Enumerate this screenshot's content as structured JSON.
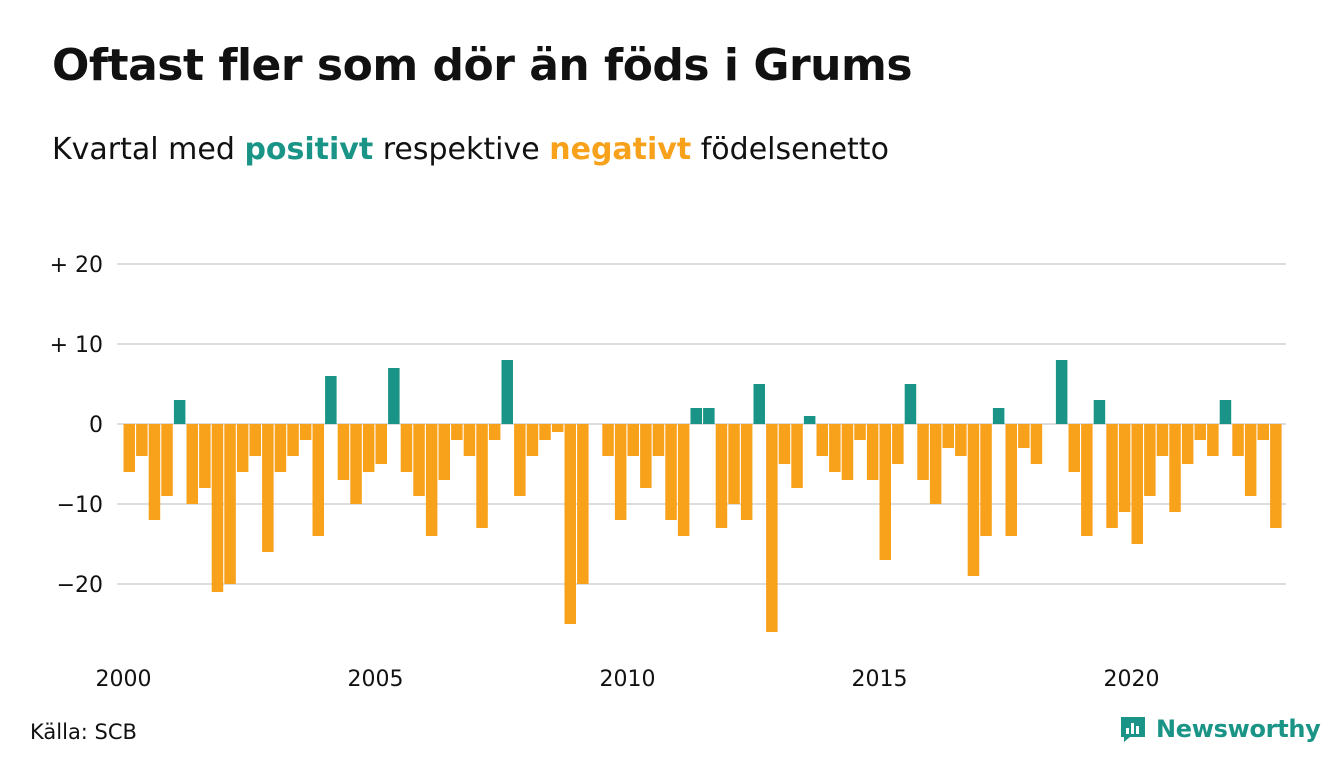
{
  "title": "Oftast fler som dör än föds i Grums",
  "subtitle": {
    "prefix": "Kvartal med",
    "positive_word": "positivt",
    "middle": "respektive",
    "negative_word": "negativt",
    "suffix": "födelsenetto"
  },
  "source": "Källa: SCB",
  "brand": {
    "name": "Newsworthy",
    "icon": "newsworthy-logo-icon"
  },
  "colors": {
    "positive": "#1a9486",
    "negative": "#f8a11b",
    "grid": "#dddddd",
    "text": "#111111",
    "brand": "#1a9486"
  },
  "chart_data": {
    "type": "bar",
    "start_year": 2000,
    "quarters_per_year": 4,
    "ylim": [
      -27,
      21
    ],
    "y_ticks": [
      {
        "value": 20,
        "label": "+ 20"
      },
      {
        "value": 10,
        "label": "+ 10"
      },
      {
        "value": 0,
        "label": "0"
      },
      {
        "value": -10,
        "label": "−10"
      },
      {
        "value": -20,
        "label": "−20"
      }
    ],
    "x_ticks": [
      {
        "year": 2000,
        "label": "2000"
      },
      {
        "year": 2005,
        "label": "2005"
      },
      {
        "year": 2010,
        "label": "2010"
      },
      {
        "year": 2015,
        "label": "2015"
      },
      {
        "year": 2020,
        "label": "2020"
      }
    ],
    "grid": true,
    "values": [
      -6,
      -4,
      -12,
      -9,
      3,
      -10,
      -8,
      -21,
      -20,
      -6,
      -4,
      -16,
      -6,
      -4,
      -2,
      -14,
      6,
      -7,
      -10,
      -6,
      -5,
      7,
      -6,
      -9,
      -14,
      -7,
      -2,
      -4,
      -13,
      -2,
      8,
      -9,
      -4,
      -2,
      -1,
      -25,
      -20,
      0,
      -4,
      -12,
      -4,
      -8,
      -4,
      -12,
      -14,
      2,
      2,
      -13,
      -10,
      -12,
      5,
      -26,
      -5,
      -8,
      1,
      -4,
      -6,
      -7,
      -2,
      -7,
      -17,
      -5,
      5,
      -7,
      -10,
      -3,
      -4,
      -19,
      -14,
      2,
      -14,
      -3,
      -5,
      0,
      8,
      -6,
      -14,
      3,
      -13,
      -11,
      -15,
      -9,
      -4,
      -11,
      -5,
      -2,
      -4,
      3,
      -4,
      -9,
      -2,
      -13
    ]
  }
}
